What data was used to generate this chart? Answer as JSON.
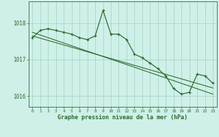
{
  "hours": [
    0,
    1,
    2,
    3,
    4,
    5,
    6,
    7,
    8,
    9,
    10,
    11,
    12,
    13,
    14,
    15,
    16,
    17,
    18,
    19,
    20,
    21,
    22,
    23
  ],
  "s1": [
    1017.6,
    1017.8,
    1017.85,
    1017.8,
    1017.75,
    1017.7,
    1017.6,
    1017.55,
    1017.65,
    1018.35,
    1017.7,
    1017.7,
    1017.55,
    1017.15,
    1017.05,
    1016.9,
    1016.75,
    1016.55,
    1016.2,
    1016.05,
    1016.1,
    1016.6,
    1016.55,
    1016.35
  ],
  "trend1_y": [
    1017.75,
    1016.05
  ],
  "trend2_y": [
    1017.65,
    1016.22
  ],
  "ylim": [
    1015.7,
    1018.6
  ],
  "yticks": [
    1016,
    1017,
    1018
  ],
  "xlim": [
    -0.5,
    23.5
  ],
  "line_color": "#2d6a2d",
  "bg_color": "#cef0e8",
  "grid_color": "#a0cfc0",
  "xlabel": "Graphe pression niveau de la mer (hPa)",
  "fig_bg": "#cef0e8"
}
